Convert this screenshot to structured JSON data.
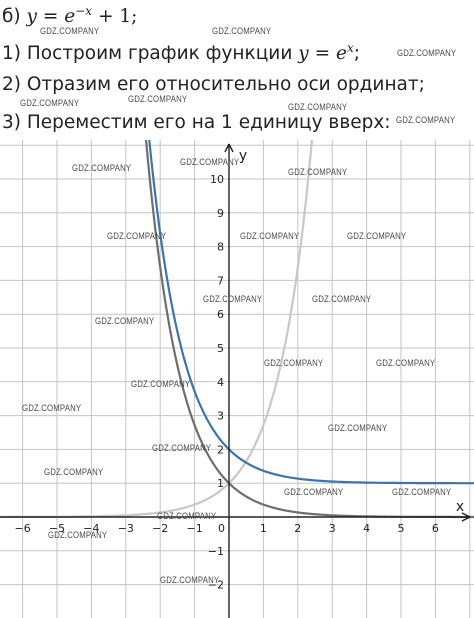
{
  "text": {
    "line0": {
      "prefix": "б)",
      "y": "y",
      "eq": "=",
      "e": "e",
      "exp": "−x",
      "plus": "+ 1;"
    },
    "line1": {
      "text": "1) Построим график функции",
      "y": "y",
      "eq": "=",
      "e": "e",
      "exp": "x",
      "end": ";"
    },
    "line2": "2) Отразим его относительно оси ординат;",
    "line3": "3) Переместим его на 1 единицу вверх:"
  },
  "watermark": "GDZ.COMPANY",
  "chart_data": {
    "type": "line",
    "xlabel": "x",
    "ylabel": "y",
    "xlim": [
      -6.5,
      7
    ],
    "ylim": [
      -2.8,
      11
    ],
    "x_ticks": [
      -6,
      -5,
      -4,
      -3,
      -2,
      -1,
      1,
      2,
      3,
      4,
      5,
      6
    ],
    "y_ticks": [
      -2,
      -1,
      1,
      2,
      3,
      4,
      5,
      6,
      7,
      8,
      9,
      10
    ],
    "origin_label": "0",
    "grid": true,
    "series": [
      {
        "formula": "e^x",
        "color": "#c8c8c8"
      },
      {
        "formula": "e^-x",
        "color": "#6e6e6e"
      },
      {
        "formula": "e^-x + 1",
        "color": "#3d74ad"
      }
    ]
  },
  "colors": {
    "grid": "#c4c4c4",
    "axis": "#222222"
  }
}
